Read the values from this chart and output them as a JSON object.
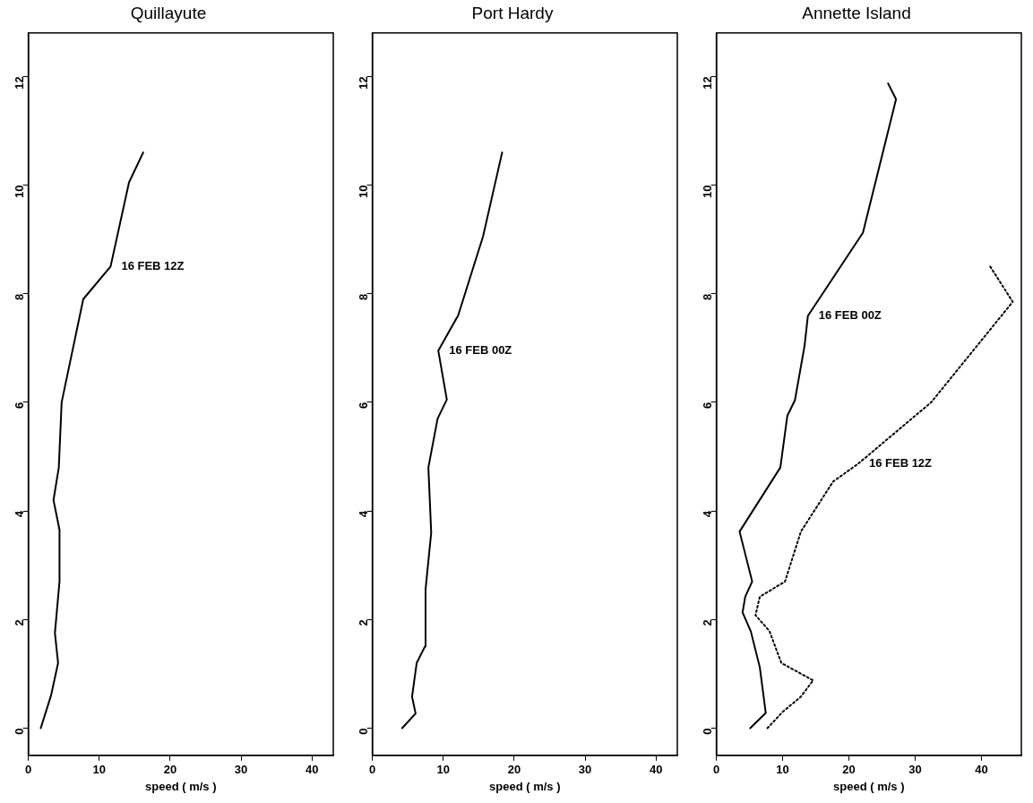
{
  "chart_data": [
    {
      "type": "line",
      "title": "Quillayute",
      "xlabel": "speed ( m/s )",
      "xlim": [
        0,
        43
      ],
      "xticks": [
        0,
        10,
        20,
        30,
        40
      ],
      "ylim": [
        -0.5,
        12.8
      ],
      "yticks": [
        0,
        2,
        4,
        6,
        8,
        10,
        12
      ],
      "grid": false,
      "legend": false,
      "marker": "none",
      "series": [
        {
          "name": "16 FEB 12Z",
          "color": "#000000",
          "x": [
            1.75,
            3.2,
            4.2,
            3.75,
            4.4,
            4.4,
            3.55,
            4.3,
            4.7,
            7.75,
            11.6,
            14.2,
            16.2
          ],
          "values": [
            0,
            0.6,
            1.2,
            1.75,
            2.7,
            3.65,
            4.2,
            4.8,
            6.0,
            7.9,
            8.5,
            10.05,
            10.6
          ]
        }
      ]
    },
    {
      "type": "line",
      "title": "Port Hardy",
      "xlabel": "speed ( m/s )",
      "xlim": [
        0,
        43
      ],
      "xticks": [
        0,
        10,
        20,
        30,
        40
      ],
      "ylim": [
        -0.5,
        12.8
      ],
      "yticks": [
        0,
        2,
        4,
        6,
        8,
        10,
        12
      ],
      "grid": false,
      "legend": false,
      "marker": "none",
      "series": [
        {
          "name": "16 FEB 00Z",
          "color": "#000000",
          "x": [
            4.2,
            6.1,
            5.6,
            6.25,
            7.4,
            7.5,
            8.3,
            7.9,
            9.2,
            10.5,
            9.3,
            12.1,
            15.6,
            18.3
          ],
          "values": [
            0,
            0.27,
            0.58,
            1.2,
            1.5,
            2.55,
            3.6,
            4.8,
            5.7,
            6.05,
            6.95,
            7.6,
            9.05,
            10.6
          ]
        }
      ]
    },
    {
      "type": "line",
      "title": "Annette Island",
      "xlabel": "speed ( m/s )",
      "xlim": [
        0,
        46
      ],
      "xticks": [
        0,
        10,
        20,
        30,
        40
      ],
      "ylim": [
        -0.5,
        12.8
      ],
      "yticks": [
        0,
        2,
        4,
        6,
        8,
        10,
        12
      ],
      "grid": false,
      "legend": false,
      "marker": "none",
      "series": [
        {
          "name": "16 FEB 00Z",
          "color": "#000000",
          "x": [
            5.1,
            7.45,
            6.55,
            5.2,
            3.95,
            4.35,
            5.4,
            3.5,
            9.65,
            10.7,
            11.85,
            13.3,
            13.8,
            22.1,
            27.1,
            25.9
          ],
          "values": [
            0,
            0.28,
            1.12,
            1.78,
            2.13,
            2.42,
            2.7,
            3.62,
            4.8,
            5.75,
            6.04,
            7.04,
            7.59,
            9.12,
            11.58,
            11.87
          ]
        },
        {
          "name": "16 FEB 12Z",
          "color": "#000000",
          "line_style": "dotted",
          "x": [
            7.7,
            10.0,
            12.75,
            14.6,
            9.8,
            8.0,
            5.9,
            6.55,
            10.35,
            12.75,
            17.6,
            21.4,
            32.4,
            44.7,
            41.3
          ],
          "values": [
            0,
            0.3,
            0.58,
            0.88,
            1.2,
            1.79,
            2.08,
            2.42,
            2.7,
            3.62,
            4.54,
            4.87,
            6.0,
            7.85,
            8.5
          ]
        }
      ]
    }
  ]
}
